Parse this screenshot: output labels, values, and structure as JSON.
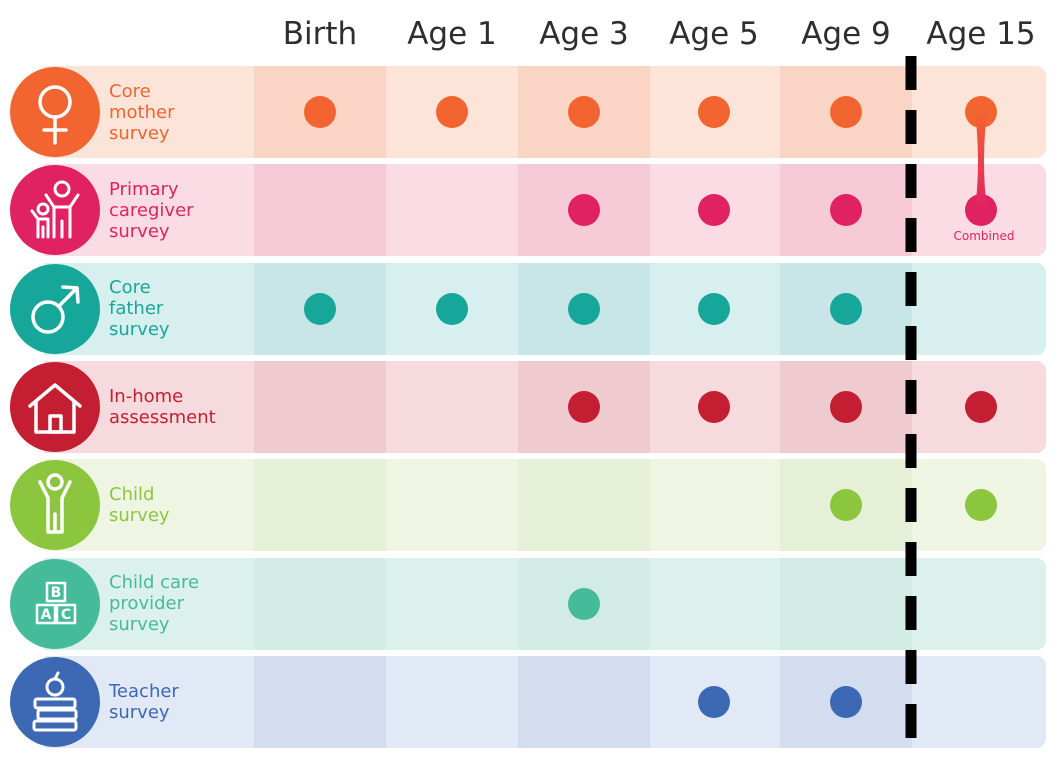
{
  "columns": [
    "Birth",
    "Age 1",
    "Age 3",
    "Age 5",
    "Age 9",
    "Age 15"
  ],
  "divider_after_column": "Age 9",
  "rows": [
    {
      "label_lines": [
        "Core",
        "mother",
        "survey"
      ],
      "icon": "female-symbol-icon",
      "color": "#f26430",
      "band_light": "#fde4d8",
      "band_dark": "#fad4c4",
      "waves": [
        "Birth",
        "Age 1",
        "Age 3",
        "Age 5",
        "Age 9",
        "Age 15"
      ]
    },
    {
      "label_lines": [
        "Primary",
        "caregiver",
        "survey"
      ],
      "icon": "parent-child-icon",
      "color": "#e02263",
      "band_light": "#fbdbe4",
      "band_dark": "#f7cad7",
      "waves": [
        "Age 3",
        "Age 5",
        "Age 9",
        "Age 15"
      ]
    },
    {
      "label_lines": [
        "Core",
        "father",
        "survey"
      ],
      "icon": "male-symbol-icon",
      "color": "#17a79a",
      "band_light": "#d8eff0",
      "band_dark": "#c8e5e7",
      "waves": [
        "Birth",
        "Age 1",
        "Age 3",
        "Age 5",
        "Age 9"
      ]
    },
    {
      "label_lines": [
        "In-home",
        "assessment"
      ],
      "icon": "house-icon",
      "color": "#c41e32",
      "band_light": "#f7dadd",
      "band_dark": "#efcbd0",
      "waves": [
        "Age 3",
        "Age 5",
        "Age 9",
        "Age 15"
      ]
    },
    {
      "label_lines": [
        "Child",
        "survey"
      ],
      "icon": "child-icon",
      "color": "#8cc63f",
      "band_light": "#eef5e2",
      "band_dark": "#e6f0d6",
      "waves": [
        "Age 9",
        "Age 15"
      ]
    },
    {
      "label_lines": [
        "Child care",
        "provider",
        "survey"
      ],
      "icon": "abc-blocks-icon",
      "color": "#45bb9a",
      "band_light": "#dcf1ec",
      "band_dark": "#d2ebe5",
      "waves": [
        "Age 3"
      ]
    },
    {
      "label_lines": [
        "Teacher",
        "survey"
      ],
      "icon": "apple-books-icon",
      "color": "#3d68b4",
      "band_light": "#e1e8f6",
      "band_dark": "#d4ddf0",
      "waves": [
        "Age 5",
        "Age 9"
      ]
    }
  ],
  "combined": {
    "label": "Combined",
    "column": "Age 15",
    "rows": [
      "Core mother survey",
      "Primary caregiver survey"
    ],
    "color": "#e02263"
  },
  "divider_color": "#000000"
}
